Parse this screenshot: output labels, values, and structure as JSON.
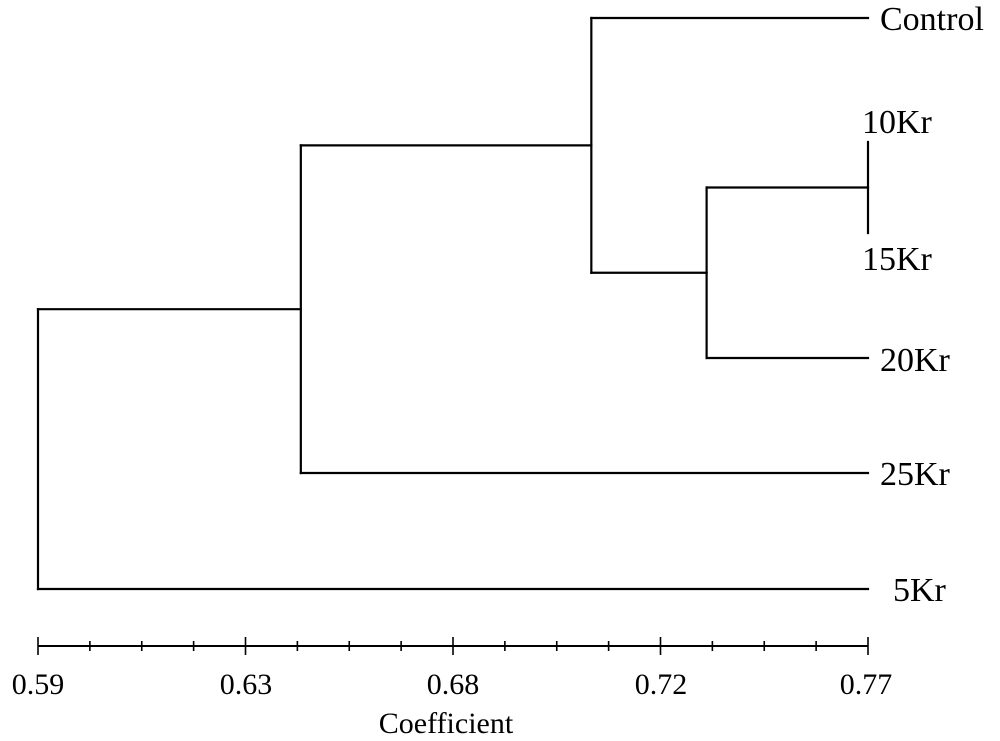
{
  "figure": {
    "axis_title": "Coefficient",
    "tick_labels": [
      "0.59",
      "0.63",
      "0.68",
      "0.72",
      "0.77"
    ],
    "leaves": [
      "Control",
      "10Kr",
      "15Kr",
      "20Kr",
      "25Kr",
      "5Kr"
    ]
  },
  "dendrogram": {
    "type": "dendrogram",
    "axis": {
      "label": "Coefficient",
      "range": [
        0.59,
        0.77
      ],
      "ticks": [
        0.59,
        0.63,
        0.68,
        0.72,
        0.77
      ],
      "minor_ticks_per_interval": 3
    },
    "leaves": [
      "Control",
      "10Kr",
      "15Kr",
      "20Kr",
      "25Kr",
      "5Kr"
    ],
    "merges": [
      {
        "children": [
          "10Kr",
          "15Kr"
        ],
        "coefficient": 0.77
      },
      {
        "children": [
          "10Kr+15Kr",
          "20Kr"
        ],
        "coefficient": 0.735
      },
      {
        "children": [
          "Control",
          "10Kr+15Kr+20Kr"
        ],
        "coefficient": 0.71
      },
      {
        "children": [
          "Control+10Kr+15Kr+20Kr",
          "25Kr"
        ],
        "coefficient": 0.647
      },
      {
        "children": [
          "Control+10Kr+15Kr+20Kr+25Kr",
          "5Kr"
        ],
        "coefficient": 0.59
      }
    ]
  }
}
